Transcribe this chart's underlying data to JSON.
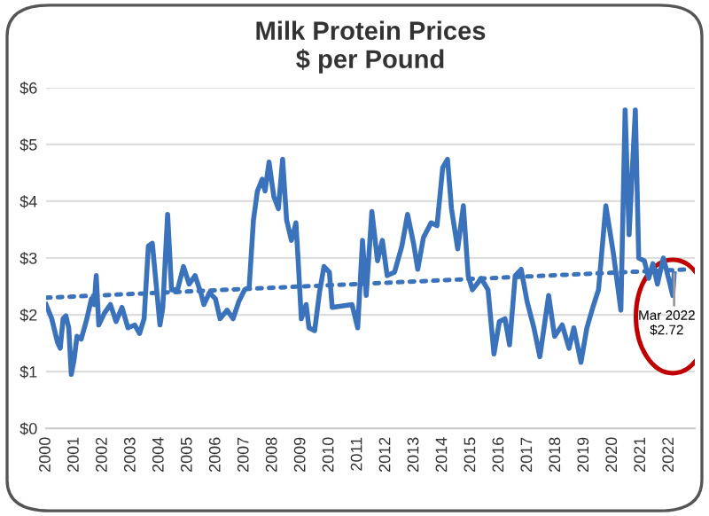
{
  "chart_data": {
    "type": "line",
    "title": "Milk Protein Prices\n$ per Pound",
    "series": [
      {
        "color": "#3a72bb",
        "x": [
          2000.0,
          2000.2,
          2000.4,
          2000.5,
          2000.6,
          2000.7,
          2000.8,
          2000.89,
          2000.99,
          2001.09,
          2001.24,
          2001.44,
          2001.6,
          2001.7,
          2001.77,
          2001.86,
          2002.06,
          2002.27,
          2002.47,
          2002.68,
          2002.89,
          2003.13,
          2003.3,
          2003.46,
          2003.61,
          2003.75,
          2004.02,
          2004.12,
          2004.29,
          2004.43,
          2004.64,
          2004.85,
          2005.05,
          2005.26,
          2005.46,
          2005.57,
          2005.77,
          2005.98,
          2006.14,
          2006.39,
          2006.6,
          2006.8,
          2007.01,
          2007.17,
          2007.32,
          2007.46,
          2007.63,
          2007.73,
          2007.87,
          2008.04,
          2008.2,
          2008.35,
          2008.49,
          2008.66,
          2008.82,
          2008.91,
          2009.01,
          2009.18,
          2009.28,
          2009.48,
          2009.65,
          2009.81,
          2010.0,
          2010.1,
          2010.8,
          2011.0,
          2011.17,
          2011.3,
          2011.5,
          2011.7,
          2011.87,
          2012.04,
          2012.3,
          2012.56,
          2012.76,
          2012.97,
          2013.12,
          2013.32,
          2013.59,
          2013.8,
          2014.0,
          2014.17,
          2014.31,
          2014.53,
          2014.73,
          2014.9,
          2015.05,
          2015.36,
          2015.6,
          2015.81,
          2016.0,
          2016.2,
          2016.36,
          2016.56,
          2016.77,
          2016.98,
          2017.22,
          2017.43,
          2017.74,
          2017.95,
          2018.22,
          2018.46,
          2018.63,
          2018.88,
          2019.09,
          2019.3,
          2019.5,
          2019.76,
          2020.02,
          2020.29,
          2020.44,
          2020.58,
          2020.8,
          2020.92,
          2021.12,
          2021.27,
          2021.42,
          2021.58,
          2021.79,
          2022.0,
          2022.12,
          2022.17
        ],
        "values": [
          2.18,
          1.93,
          1.52,
          1.41,
          1.93,
          1.98,
          1.77,
          0.95,
          1.21,
          1.62,
          1.57,
          1.93,
          2.28,
          2.18,
          2.69,
          1.82,
          2.03,
          2.18,
          1.88,
          2.13,
          1.77,
          1.82,
          1.67,
          1.93,
          3.21,
          3.26,
          1.82,
          2.13,
          3.77,
          2.44,
          2.44,
          2.85,
          2.54,
          2.69,
          2.39,
          2.18,
          2.39,
          2.28,
          1.93,
          2.08,
          1.93,
          2.23,
          2.44,
          2.49,
          3.67,
          4.18,
          4.39,
          4.18,
          4.69,
          4.08,
          3.87,
          4.74,
          3.67,
          3.31,
          3.62,
          2.85,
          1.93,
          2.18,
          1.77,
          1.72,
          2.39,
          2.85,
          2.75,
          2.13,
          2.18,
          1.77,
          3.31,
          2.34,
          3.82,
          2.95,
          3.31,
          2.69,
          2.75,
          3.21,
          3.77,
          3.26,
          2.8,
          3.36,
          3.62,
          3.57,
          4.59,
          4.74,
          3.87,
          3.16,
          3.92,
          2.69,
          2.44,
          2.64,
          2.44,
          1.31,
          1.88,
          1.93,
          1.47,
          2.69,
          2.8,
          2.23,
          1.77,
          1.26,
          2.34,
          1.62,
          1.82,
          1.41,
          1.77,
          1.16,
          1.77,
          2.13,
          2.44,
          3.92,
          3.1,
          2.08,
          5.61,
          3.41,
          5.61,
          3.0,
          2.95,
          2.64,
          2.9,
          2.54,
          3.0,
          2.59,
          2.34,
          2.72
        ]
      },
      {
        "color": "#3a72bb",
        "x": [
          2000.0,
          2022.7
        ],
        "values": [
          2.3,
          2.8
        ],
        "line_style": "dotted"
      }
    ],
    "annotations": [
      {
        "text": "Mar 2022\n$2.72",
        "x": 2022.17,
        "y": 2.72
      }
    ],
    "xlim": [
      2000,
      2022.9
    ],
    "xticks": [
      2000,
      2001,
      2002,
      2003,
      2004,
      2005,
      2006,
      2007,
      2008,
      2009,
      2010,
      2011,
      2012,
      2013,
      2014,
      2015,
      2016,
      2017,
      2018,
      2019,
      2020,
      2021,
      2022
    ],
    "ylim": [
      0,
      6
    ],
    "yticks": [
      {
        "value": 0,
        "label": "$0"
      },
      {
        "value": 1,
        "label": "$1"
      },
      {
        "value": 2,
        "label": "$2"
      },
      {
        "value": 3,
        "label": "$3"
      },
      {
        "value": 4,
        "label": "$4"
      },
      {
        "value": 5,
        "label": "$5"
      },
      {
        "value": 6,
        "label": "$6"
      }
    ],
    "grid": "y",
    "legend": false,
    "marker": "none",
    "line_style": "solid"
  }
}
